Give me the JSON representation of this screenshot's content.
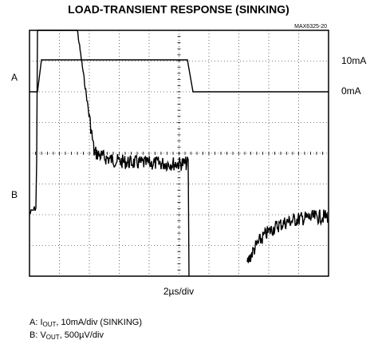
{
  "title": "LOAD-TRANSIENT RESPONSE (SINKING)",
  "chip_id": "MAX6325-20",
  "trace_labels": {
    "a": "A",
    "b": "B"
  },
  "right_labels": {
    "high": "10mA",
    "low": "0mA"
  },
  "x_scale": "2µs/div",
  "legend": [
    {
      "prefix": "A:  I",
      "sub": "OUT",
      "suffix": ", 10mA/div (SINKING)"
    },
    {
      "prefix": "B:  V",
      "sub": "OUT",
      "suffix": ", 500µV/div"
    }
  ]
}
